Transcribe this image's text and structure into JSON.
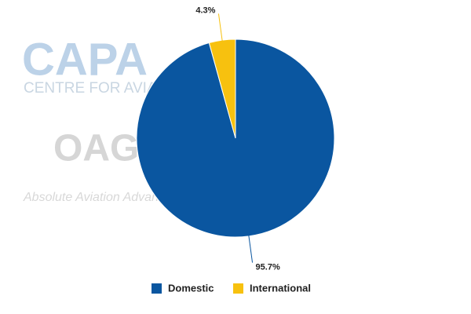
{
  "chart_data": {
    "type": "pie",
    "categories": [
      "Domestic",
      "International"
    ],
    "values": [
      95.7,
      4.3
    ],
    "value_labels": [
      "95.7%",
      "4.3%"
    ],
    "colors": [
      "#0a56a0",
      "#f7c10f"
    ],
    "legend": "bottom",
    "watermarks": [
      "CAPA",
      "CENTRE FOR AVIATION",
      "OAG",
      "Absolute Aviation Advantage"
    ]
  }
}
